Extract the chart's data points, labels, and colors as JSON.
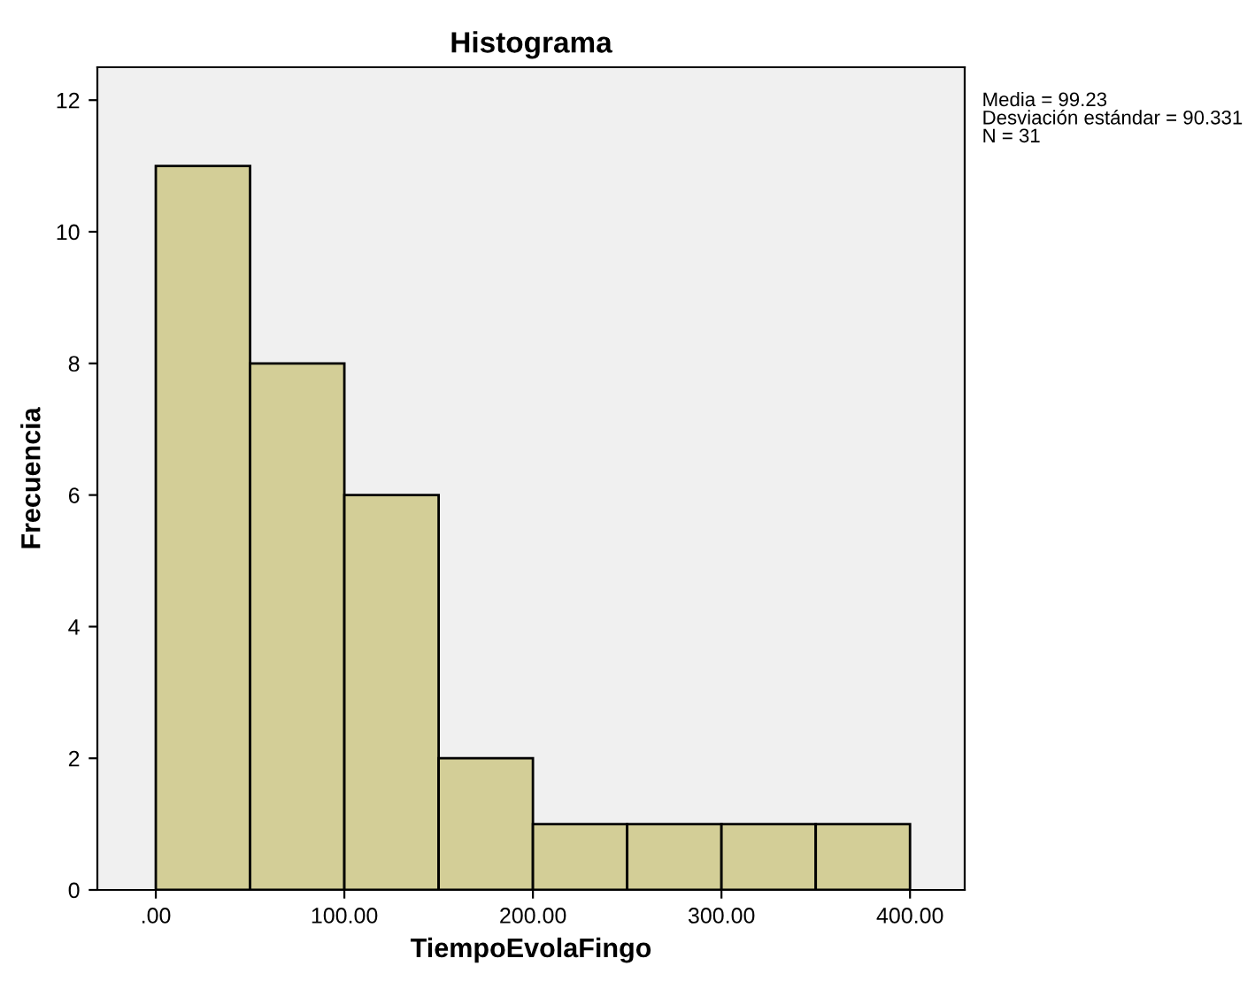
{
  "chart_data": {
    "type": "histogram",
    "title": "Histograma",
    "xlabel": "TiempoEvolaFingo",
    "ylabel": "Frecuencia",
    "bins": [
      0,
      50,
      100,
      150,
      200,
      250,
      300,
      350,
      400
    ],
    "values": [
      11,
      8,
      6,
      2,
      1,
      1,
      1,
      1
    ],
    "color": "#d3ce97",
    "xlim": [
      -31,
      429
    ],
    "ylim": [
      0,
      12.5
    ],
    "xticks": [
      {
        "value": 0,
        "label": ".00"
      },
      {
        "value": 100,
        "label": "100.00"
      },
      {
        "value": 200,
        "label": "200.00"
      },
      {
        "value": 300,
        "label": "300.00"
      },
      {
        "value": 400,
        "label": "400.00"
      }
    ],
    "yticks": [
      0,
      2,
      4,
      6,
      8,
      10,
      12
    ],
    "annotations": [
      "Media = 99.23",
      "Desviación estándar = 90.331",
      "N = 31"
    ],
    "grid": false,
    "legend": false
  }
}
